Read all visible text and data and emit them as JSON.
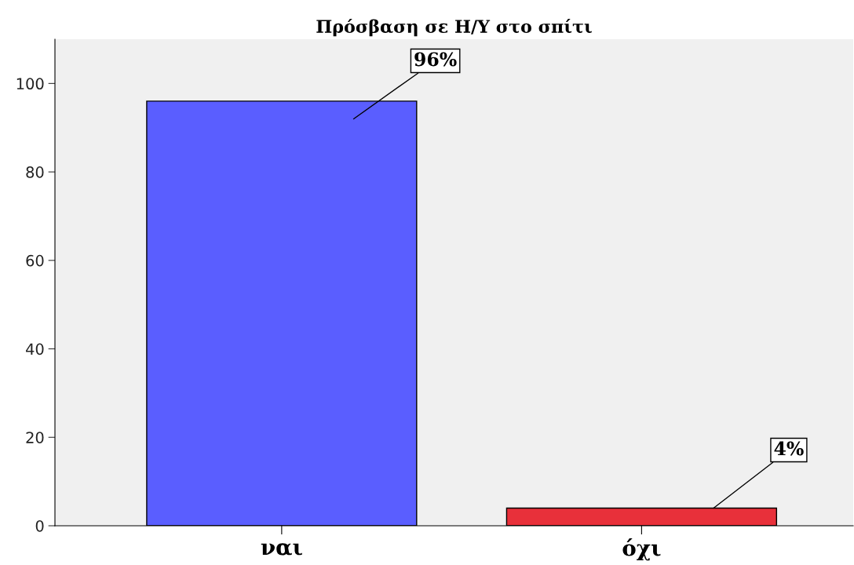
{
  "chart_data": {
    "type": "bar",
    "title": "Πρόσβαση σε Η/Υ στο σπίτι",
    "categories": [
      "ναι",
      "όχι"
    ],
    "values": [
      96,
      4
    ],
    "colors": [
      "#5a5eff",
      "#e8303a"
    ],
    "value_labels": [
      "96%",
      "4%"
    ],
    "ylim": [
      0,
      110
    ],
    "yticks": [
      0,
      20,
      40,
      60,
      80,
      100
    ],
    "grid": false,
    "legend": false
  }
}
